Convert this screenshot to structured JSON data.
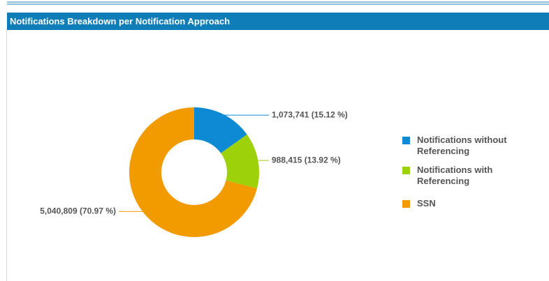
{
  "chart_data": {
    "type": "donut",
    "title": "Notifications Breakdown per Notification Approach",
    "categories": [
      "Notifications without Referencing",
      "Notifications with Referencing",
      "SSN"
    ],
    "values": [
      1073741,
      988415,
      5040809
    ],
    "value_labels": [
      "1,073,741 (15.12 %)",
      "988,415 (13.92 %)",
      "5,040,809 (70.97 %)"
    ],
    "colors": [
      "#0d8ad3",
      "#9dd10a",
      "#f29b00"
    ],
    "legend": "right"
  }
}
